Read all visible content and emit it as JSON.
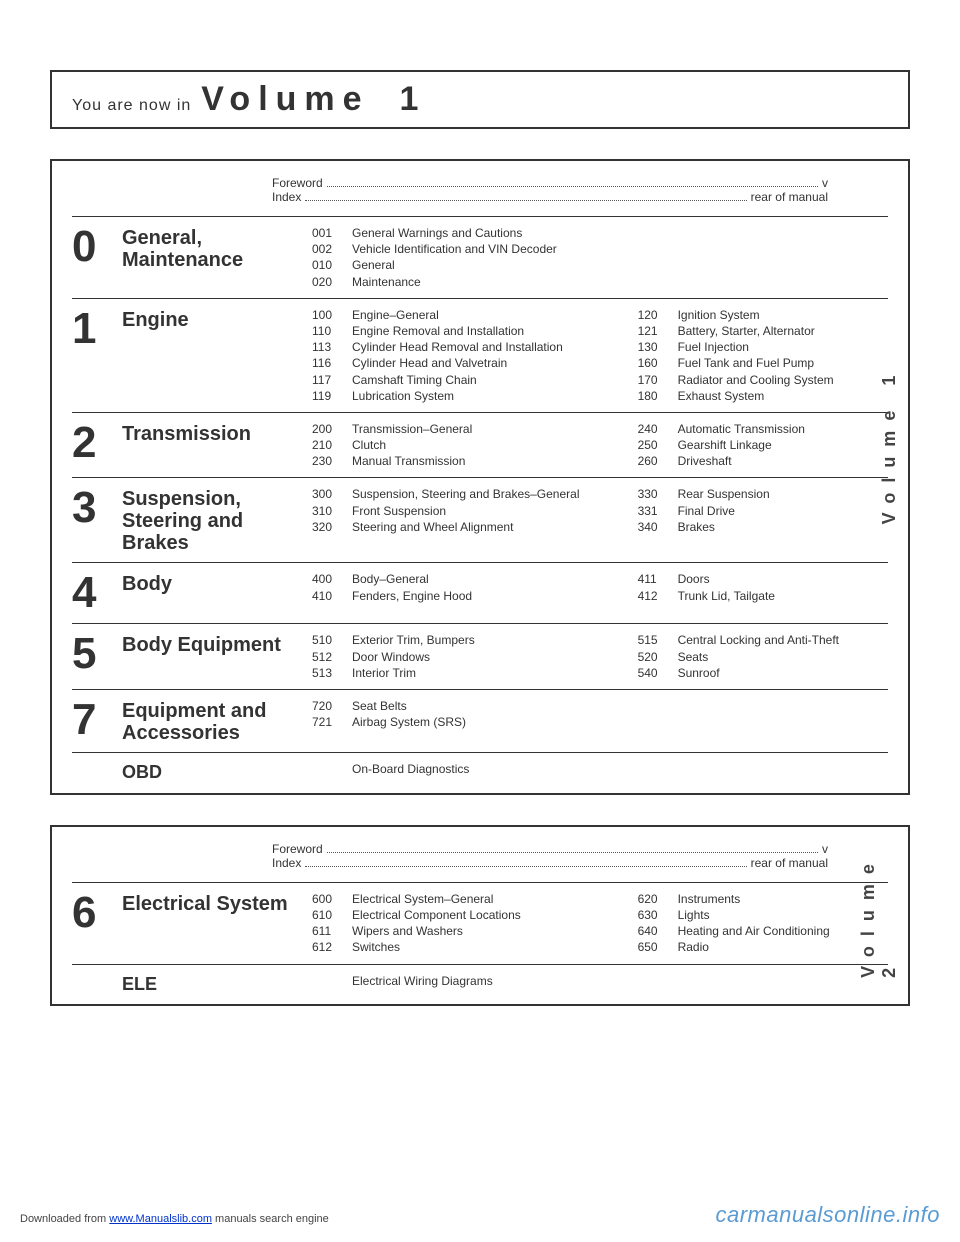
{
  "header": {
    "pre": "You are now in",
    "vol": "Volume",
    "num": "1"
  },
  "foreword": {
    "fw_label": "Foreword",
    "fw_page": "v",
    "idx_label": "Index",
    "idx_page": "rear of manual"
  },
  "vol1_side": "Volume 1",
  "vol2_side": "Volume 2",
  "sections_v1": [
    {
      "num": "0",
      "title": "General, Maintenance",
      "left": [
        {
          "c": "001",
          "t": "General Warnings and Cautions"
        },
        {
          "c": "002",
          "t": "Vehicle Identification and VIN Decoder"
        },
        {
          "c": "010",
          "t": "General"
        },
        {
          "c": "020",
          "t": "Maintenance"
        }
      ],
      "right": []
    },
    {
      "num": "1",
      "title": "Engine",
      "left": [
        {
          "c": "100",
          "t": "Engine–General"
        },
        {
          "c": "110",
          "t": "Engine Removal and Installation"
        },
        {
          "c": "113",
          "t": "Cylinder Head Removal and Installation"
        },
        {
          "c": "116",
          "t": "Cylinder Head and Valvetrain"
        },
        {
          "c": "117",
          "t": "Camshaft Timing Chain"
        },
        {
          "c": "119",
          "t": "Lubrication System"
        }
      ],
      "right": [
        {
          "c": "120",
          "t": "Ignition System"
        },
        {
          "c": "121",
          "t": "Battery, Starter, Alternator"
        },
        {
          "c": "130",
          "t": "Fuel Injection"
        },
        {
          "c": "160",
          "t": "Fuel Tank and Fuel Pump"
        },
        {
          "c": "170",
          "t": "Radiator and Cooling System"
        },
        {
          "c": "180",
          "t": "Exhaust System"
        }
      ]
    },
    {
      "num": "2",
      "title": "Transmission",
      "left": [
        {
          "c": "200",
          "t": "Transmission–General"
        },
        {
          "c": "210",
          "t": "Clutch"
        },
        {
          "c": "230",
          "t": "Manual Transmission"
        }
      ],
      "right": [
        {
          "c": "240",
          "t": "Automatic Transmission"
        },
        {
          "c": "250",
          "t": "Gearshift Linkage"
        },
        {
          "c": "260",
          "t": "Driveshaft"
        }
      ]
    },
    {
      "num": "3",
      "title": "Suspension, Steering and Brakes",
      "left": [
        {
          "c": "300",
          "t": "Suspension, Steering and Brakes–General"
        },
        {
          "c": "310",
          "t": "Front Suspension"
        },
        {
          "c": "320",
          "t": "Steering and Wheel Alignment"
        }
      ],
      "right": [
        {
          "c": "330",
          "t": "Rear Suspension"
        },
        {
          "c": "331",
          "t": "Final Drive"
        },
        {
          "c": "340",
          "t": "Brakes"
        }
      ]
    },
    {
      "num": "4",
      "title": "Body",
      "left": [
        {
          "c": "400",
          "t": "Body–General"
        },
        {
          "c": "410",
          "t": "Fenders, Engine Hood"
        }
      ],
      "right": [
        {
          "c": "411",
          "t": "Doors"
        },
        {
          "c": "412",
          "t": "Trunk Lid, Tailgate"
        }
      ]
    },
    {
      "num": "5",
      "title": "Body Equipment",
      "left": [
        {
          "c": "510",
          "t": "Exterior Trim, Bumpers"
        },
        {
          "c": "512",
          "t": "Door Windows"
        },
        {
          "c": "513",
          "t": "Interior Trim"
        }
      ],
      "right": [
        {
          "c": "515",
          "t": "Central Locking and Anti-Theft"
        },
        {
          "c": "520",
          "t": "Seats"
        },
        {
          "c": "540",
          "t": "Sunroof"
        }
      ]
    },
    {
      "num": "7",
      "title": "Equipment and Accessories",
      "left": [
        {
          "c": "720",
          "t": "Seat Belts"
        },
        {
          "c": "721",
          "t": "Airbag System (SRS)"
        }
      ],
      "right": []
    },
    {
      "num": "",
      "title": "OBD",
      "left": [
        {
          "c": "",
          "t": "On-Board Diagnostics"
        }
      ],
      "right": []
    }
  ],
  "sections_v2": [
    {
      "num": "6",
      "title": "Electrical System",
      "left": [
        {
          "c": "600",
          "t": "Electrical System–General"
        },
        {
          "c": "610",
          "t": "Electrical Component Locations"
        },
        {
          "c": "611",
          "t": "Wipers and Washers"
        },
        {
          "c": "612",
          "t": "Switches"
        }
      ],
      "right": [
        {
          "c": "620",
          "t": "Instruments"
        },
        {
          "c": "630",
          "t": "Lights"
        },
        {
          "c": "640",
          "t": "Heating and Air Conditioning"
        },
        {
          "c": "650",
          "t": "Radio"
        }
      ]
    },
    {
      "num": "",
      "title": "ELE",
      "left": [
        {
          "c": "",
          "t": "Electrical Wiring Diagrams"
        }
      ],
      "right": []
    }
  ],
  "footer": {
    "left_pre": "Downloaded from ",
    "left_link": "www.Manualslib.com",
    "left_post": " manuals search engine",
    "right": "carmanualsonline.info"
  }
}
